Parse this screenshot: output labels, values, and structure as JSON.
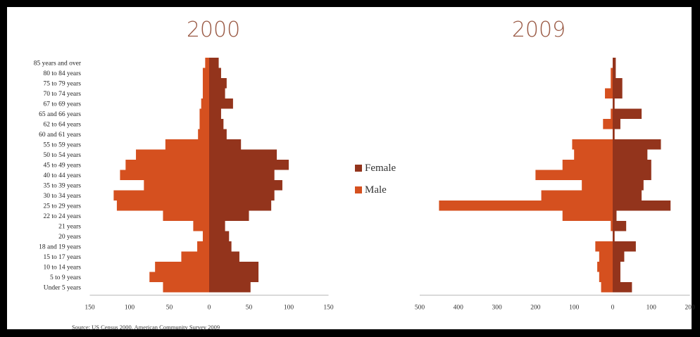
{
  "colors": {
    "female": "#93341c",
    "male": "#d5501f",
    "axis": "#bbbbbb"
  },
  "legend": {
    "female": "Female",
    "male": "Male"
  },
  "source": "Source: US Census 2000, American Community Survey 2009",
  "chart_data": [
    {
      "type": "bar",
      "title": "2000",
      "orientation": "horizontal",
      "categories": [
        "85 years and over",
        "80 to 84 years",
        "75 to 79 years",
        "70 to 74 years",
        "67 to 69 years",
        "65 and 66 years",
        "62 to 64 years",
        "60 and 61 years",
        "55 to 59 years",
        "50 to 54 years",
        "45 to 49 years",
        "40 to 44 years",
        "35 to 39 years",
        "30 to 34 years",
        "25 to 29 years",
        "22 to 24 years",
        "21 years",
        "20 years",
        "18 and 19 years",
        "15 to 17 years",
        "10 to 14 years",
        "5 to 9 years",
        "Under 5 years"
      ],
      "series": [
        {
          "name": "Female",
          "values": [
            12,
            15,
            22,
            20,
            30,
            15,
            18,
            22,
            40,
            85,
            100,
            82,
            92,
            82,
            78,
            50,
            20,
            25,
            28,
            38,
            62,
            62,
            52
          ]
        },
        {
          "name": "Male",
          "values": [
            -5,
            -8,
            -8,
            -8,
            -10,
            -12,
            -12,
            -14,
            -55,
            -92,
            -105,
            -112,
            -82,
            -120,
            -116,
            -58,
            -20,
            -8,
            -15,
            -35,
            -68,
            -75,
            -58
          ]
        }
      ],
      "xlim": [
        -150,
        150
      ],
      "xticks": [
        "150",
        "100",
        "50",
        "0",
        "50",
        "100",
        "150"
      ],
      "xtick_values": [
        -150,
        -100,
        -50,
        0,
        50,
        100,
        150
      ]
    },
    {
      "type": "bar",
      "title": "2009",
      "orientation": "horizontal",
      "categories": [
        "85 years and over",
        "80 to 84 years",
        "75 to 79 years",
        "70 to 74 years",
        "67 to 69 years",
        "65 and 66 years",
        "62 to 64 years",
        "60 and 61 years",
        "55 to 59 years",
        "50 to 54 years",
        "45 to 49 years",
        "40 to 44 years",
        "35 to 39 years",
        "30 to 34 years",
        "25 to 29 years",
        "22 to 24 years",
        "21 years",
        "20 years",
        "18 and 19 years",
        "15 to 17 years",
        "10 to 14 years",
        "5 to 9 years",
        "Under 5 years"
      ],
      "series": [
        {
          "name": "Female",
          "values": [
            8,
            8,
            25,
            25,
            5,
            75,
            20,
            5,
            125,
            90,
            100,
            100,
            80,
            75,
            150,
            10,
            35,
            5,
            60,
            30,
            20,
            20,
            50
          ]
        },
        {
          "name": "Male",
          "values": [
            0,
            -5,
            -5,
            -20,
            0,
            -5,
            -25,
            0,
            -105,
            -100,
            -130,
            -200,
            -80,
            -185,
            -450,
            -130,
            -5,
            0,
            -45,
            -35,
            -40,
            -35,
            -30
          ]
        }
      ],
      "xlim": [
        -500,
        200
      ],
      "xticks": [
        "500",
        "400",
        "300",
        "200",
        "100",
        "0",
        "100",
        "200"
      ],
      "xtick_values": [
        -500,
        -400,
        -300,
        -200,
        -100,
        0,
        100,
        200
      ]
    }
  ]
}
